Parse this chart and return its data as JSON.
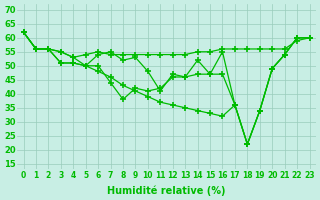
{
  "series": [
    {
      "x": [
        0,
        1,
        2,
        3,
        4,
        5,
        6,
        7,
        8,
        9,
        10,
        11,
        12,
        13,
        14,
        15,
        16,
        17,
        18,
        19,
        20,
        21,
        22,
        23
      ],
      "y": [
        62,
        56,
        56,
        55,
        53,
        54,
        55,
        54,
        54,
        54,
        54,
        54,
        54,
        54,
        55,
        55,
        56,
        56,
        56,
        56,
        56,
        56,
        59,
        60
      ]
    },
    {
      "x": [
        0,
        1,
        2,
        3,
        4,
        5,
        6,
        7,
        8,
        9,
        10,
        11,
        12,
        13,
        14,
        15,
        16,
        17,
        18,
        19,
        20,
        21,
        22,
        23
      ],
      "y": [
        62,
        56,
        56,
        51,
        51,
        50,
        54,
        55,
        52,
        53,
        48,
        41,
        47,
        46,
        52,
        47,
        55,
        36,
        22,
        34,
        49,
        54,
        60,
        60
      ]
    },
    {
      "x": [
        0,
        1,
        2,
        3,
        4,
        5,
        6,
        7,
        8,
        9,
        10,
        11,
        12,
        13,
        14,
        15,
        16,
        17,
        18,
        19,
        20,
        21,
        22,
        23
      ],
      "y": [
        62,
        56,
        56,
        51,
        51,
        50,
        50,
        44,
        38,
        42,
        41,
        42,
        46,
        46,
        47,
        47,
        47,
        36,
        22,
        34,
        49,
        54,
        60,
        60
      ]
    },
    {
      "x": [
        0,
        1,
        2,
        3,
        4,
        5,
        6,
        7,
        8,
        9,
        10,
        11,
        12,
        13,
        14,
        15,
        16,
        17,
        18,
        19,
        20,
        21,
        22,
        23
      ],
      "y": [
        62,
        56,
        56,
        55,
        53,
        50,
        48,
        46,
        43,
        41,
        39,
        37,
        36,
        35,
        34,
        33,
        32,
        36,
        22,
        34,
        49,
        54,
        60,
        60
      ]
    }
  ],
  "line_color": "#00bb00",
  "marker_color": "#00bb00",
  "bg_color": "#c8eee4",
  "grid_color": "#99ccbb",
  "xlabel": "Humidité relative (%)",
  "ylabel_ticks": [
    15,
    20,
    25,
    30,
    35,
    40,
    45,
    50,
    55,
    60,
    65,
    70
  ],
  "xlim": [
    -0.5,
    23.5
  ],
  "ylim": [
    13,
    72
  ],
  "xticks": [
    0,
    1,
    2,
    3,
    4,
    5,
    6,
    7,
    8,
    9,
    10,
    11,
    12,
    13,
    14,
    15,
    16,
    17,
    18,
    19,
    20,
    21,
    22,
    23
  ],
  "xtick_labels": [
    "0",
    "1",
    "2",
    "3",
    "4",
    "5",
    "6",
    "7",
    "8",
    "9",
    "10",
    "11",
    "12",
    "13",
    "14",
    "15",
    "16",
    "17",
    "18",
    "19",
    "20",
    "21",
    "22",
    "23"
  ],
  "marker_size": 4,
  "linewidth": 0.9
}
